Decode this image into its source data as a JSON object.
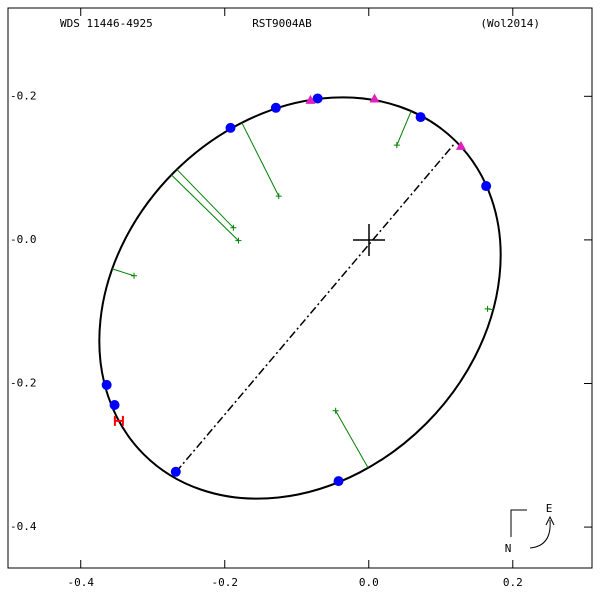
{
  "chart_data": {
    "type": "orbit",
    "header": [
      "WDS 11446-4925",
      "RST9004AB",
      "(Wol2014)"
    ],
    "xlim": [
      -0.501,
      0.31
    ],
    "ylim": [
      -0.457,
      0.323
    ],
    "xticks": [
      -0.4,
      -0.2,
      {
        "value": 0,
        "label": "0.0"
      },
      0.2
    ],
    "yticks": [
      {
        "value": 0.2,
        "label": "-0.2"
      },
      {
        "value": 0,
        "label": "-0.0"
      },
      -0.2,
      -0.4
    ],
    "series": [
      {
        "marker": "circle",
        "color": "#0000ff",
        "x": [
          -0.071,
          -0.129,
          -0.192,
          0.072,
          0.163,
          -0.364,
          -0.353,
          -0.268,
          -0.042
        ],
        "values": [
          0.197,
          0.184,
          0.156,
          0.171,
          0.075,
          -0.202,
          -0.23,
          -0.323,
          -0.336
        ]
      },
      {
        "marker": "triangle",
        "color": "#e020c0",
        "x": [
          -0.081,
          0.008,
          0.128
        ],
        "values": [
          0.195,
          0.197,
          0.131
        ]
      },
      {
        "marker": "H",
        "color": "#ff0000",
        "x": [
          -0.347
        ],
        "values": [
          -0.252
        ]
      },
      {
        "marker": "plus",
        "color": "#008000",
        "x": [
          0.039,
          -0.125,
          -0.188,
          -0.181,
          -0.326,
          0.165,
          -0.046
        ],
        "values": [
          0.132,
          0.061,
          0.017,
          -0.001,
          -0.05,
          -0.096,
          -0.238
        ]
      }
    ],
    "compass": {
      "east": "E",
      "north": "N"
    }
  }
}
